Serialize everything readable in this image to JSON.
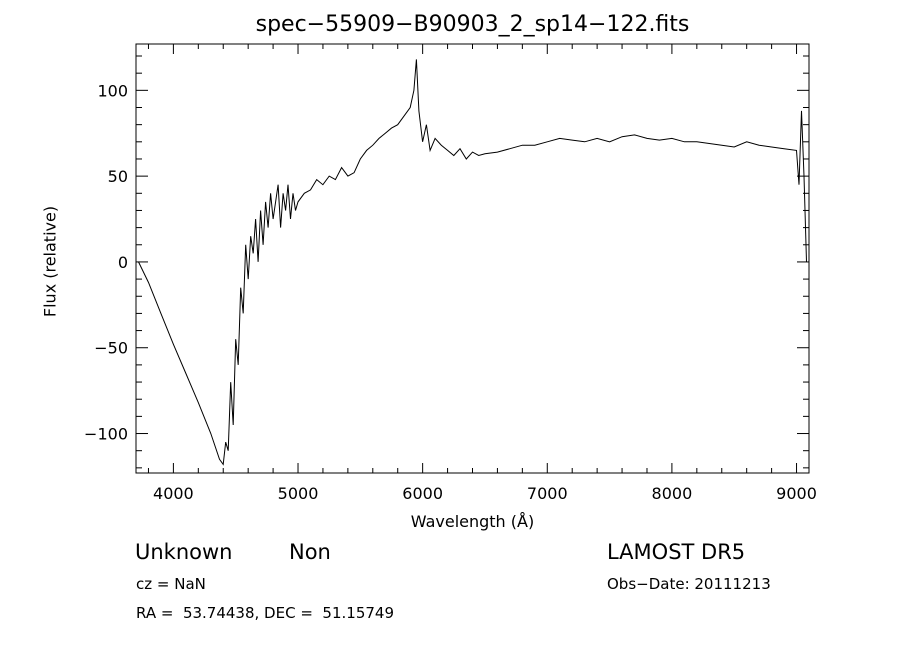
{
  "chart_data": {
    "type": "line",
    "title": "spec−55909−B90903_2_sp14−122.fits",
    "xlabel": "Wavelength (Å)",
    "ylabel": "Flux (relative)",
    "xlim": [
      3700,
      9100
    ],
    "ylim": [
      -123,
      127
    ],
    "xticks": [
      4000,
      5000,
      6000,
      7000,
      8000,
      9000
    ],
    "xtick_labels": [
      "4000",
      "5000",
      "6000",
      "7000",
      "8000",
      "9000"
    ],
    "yticks": [
      -100,
      -50,
      0,
      50,
      100
    ],
    "ytick_labels": [
      "−100",
      "−50",
      "0",
      "50",
      "100"
    ],
    "grid": false,
    "legend": "none",
    "series": [
      {
        "x": [
          3720,
          3800,
          3900,
          4000,
          4100,
          4200,
          4300,
          4370,
          4400,
          4420,
          4440,
          4460,
          4480,
          4500,
          4520,
          4540,
          4560,
          4580,
          4600,
          4620,
          4640,
          4660,
          4680,
          4700,
          4720,
          4740,
          4760,
          4780,
          4800,
          4820,
          4840,
          4860,
          4880,
          4900,
          4920,
          4940,
          4960,
          4980,
          5000,
          5050,
          5100,
          5150,
          5200,
          5250,
          5300,
          5350,
          5400,
          5450,
          5500,
          5550,
          5600,
          5650,
          5700,
          5750,
          5800,
          5850,
          5900,
          5930,
          5950,
          5970,
          6000,
          6030,
          6060,
          6100,
          6150,
          6200,
          6250,
          6300,
          6350,
          6400,
          6450,
          6500,
          6600,
          6700,
          6800,
          6900,
          7000,
          7100,
          7200,
          7300,
          7400,
          7500,
          7600,
          7700,
          7800,
          7900,
          8000,
          8100,
          8200,
          8300,
          8400,
          8500,
          8600,
          8700,
          8800,
          8900,
          9000,
          9020,
          9040,
          9060,
          9080
        ],
        "y": [
          0,
          -12,
          -30,
          -48,
          -65,
          -82,
          -100,
          -115,
          -118,
          -105,
          -110,
          -70,
          -95,
          -45,
          -60,
          -15,
          -30,
          10,
          -10,
          15,
          5,
          25,
          0,
          30,
          10,
          35,
          20,
          40,
          25,
          35,
          45,
          20,
          40,
          30,
          45,
          25,
          40,
          30,
          35,
          40,
          42,
          48,
          45,
          50,
          48,
          55,
          50,
          52,
          60,
          65,
          68,
          72,
          75,
          78,
          80,
          85,
          90,
          100,
          118,
          88,
          70,
          80,
          65,
          72,
          68,
          65,
          62,
          66,
          60,
          64,
          62,
          63,
          64,
          66,
          68,
          68,
          70,
          72,
          71,
          70,
          72,
          70,
          73,
          74,
          72,
          71,
          72,
          70,
          70,
          69,
          68,
          67,
          70,
          68,
          67,
          66,
          65,
          45,
          88,
          50,
          0
        ]
      }
    ],
    "annotations": {
      "object_class": "Unknown",
      "subclass": "Non",
      "survey": "LAMOST DR5",
      "cz": "cz = NaN",
      "obs_date": "Obs−Date: 20111213",
      "radec": "RA =  53.74438, DEC =  51.15749"
    }
  }
}
